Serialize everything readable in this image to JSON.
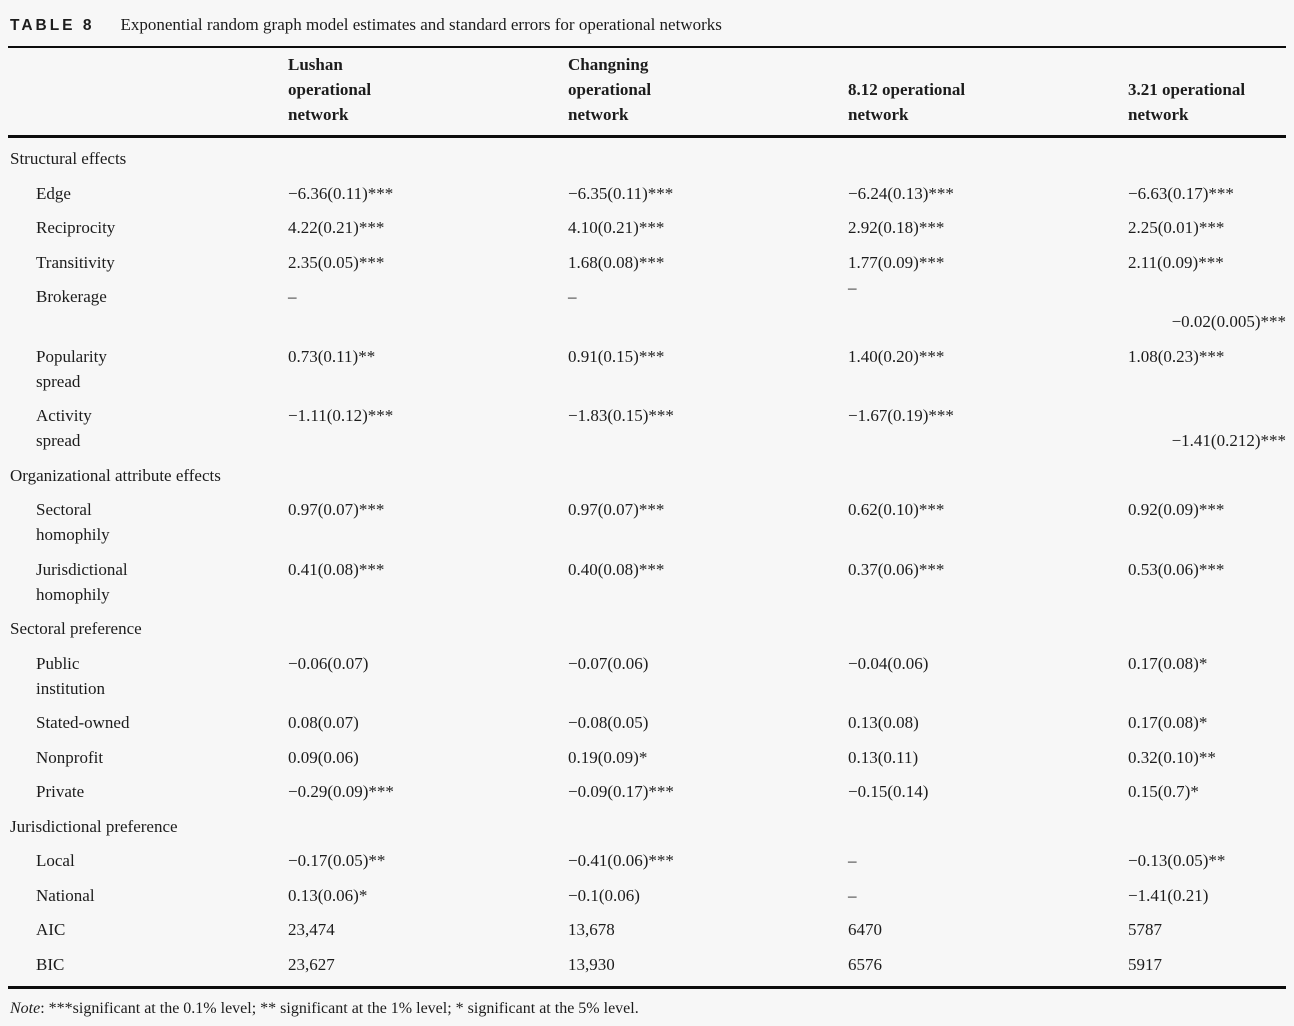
{
  "title": {
    "label": "TABLE 8",
    "caption": "Exponential random graph model estimates and standard errors for operational networks"
  },
  "header": {
    "col1": "Lushan\noperational\nnetwork",
    "col2": "Changning\noperational\nnetwork",
    "col3": "8.12 operational\nnetwork",
    "col4": "3.21 operational\nnetwork"
  },
  "rows": [
    {
      "label": "Structural effects"
    },
    {
      "label": "Edge",
      "v1": "−6.36(0.11)***",
      "v2": "−6.35(0.11)***",
      "v3": "−6.24(0.13)***",
      "v4": "−6.63(0.17)***"
    },
    {
      "label": "Reciprocity",
      "v1": "4.22(0.21)***",
      "v2": "4.10(0.21)***",
      "v3": "2.92(0.18)***",
      "v4": "2.25(0.01)***"
    },
    {
      "label": "Transitivity",
      "v1": "2.35(0.05)***",
      "v2": "1.68(0.08)***",
      "v3": "1.77(0.09)***",
      "v4": "2.11(0.09)***"
    },
    {
      "label": "Brokerage",
      "v1": "–",
      "v2": "–",
      "v3": "–",
      "v4": "−0.02(0.005)***"
    },
    {
      "label": "Popularity\nspread",
      "v1": "0.73(0.11)**",
      "v2": "0.91(0.15)***",
      "v3": "1.40(0.20)***",
      "v4": "1.08(0.23)***"
    },
    {
      "label": "Activity\nspread",
      "v1": "−1.11(0.12)***",
      "v2": "−1.83(0.15)***",
      "v3": "−1.67(0.19)***",
      "v4": "−1.41(0.212)***"
    },
    {
      "label": "Organizational attribute effects"
    },
    {
      "label": "Sectoral\nhomophily",
      "v1": "0.97(0.07)***",
      "v2": "0.97(0.07)***",
      "v3": "0.62(0.10)***",
      "v4": "0.92(0.09)***"
    },
    {
      "label": "Jurisdictional\nhomophily",
      "v1": "0.41(0.08)***",
      "v2": "0.40(0.08)***",
      "v3": "0.37(0.06)***",
      "v4": "0.53(0.06)***"
    },
    {
      "label": "Sectoral preference"
    },
    {
      "label": "Public\ninstitution",
      "v1": "−0.06(0.07)",
      "v2": "−0.07(0.06)",
      "v3": "−0.04(0.06)",
      "v4": "0.17(0.08)*"
    },
    {
      "label": "Stated-owned",
      "v1": "0.08(0.07)",
      "v2": "−0.08(0.05)",
      "v3": "0.13(0.08)",
      "v4": "0.17(0.08)*"
    },
    {
      "label": "Nonprofit",
      "v1": "0.09(0.06)",
      "v2": "0.19(0.09)*",
      "v3": "0.13(0.11)",
      "v4": "0.32(0.10)**"
    },
    {
      "label": "Private",
      "v1": "−0.29(0.09)***",
      "v2": "−0.09(0.17)***",
      "v3": "−0.15(0.14)",
      "v4": "0.15(0.7)*"
    },
    {
      "label": "Jurisdictional preference"
    },
    {
      "label": "Local",
      "v1": "−0.17(0.05)**",
      "v2": "−0.41(0.06)***",
      "v3": "–",
      "v4": "−0.13(0.05)**"
    },
    {
      "label": "National",
      "v1": "0.13(0.06)*",
      "v2": "−0.1(0.06)",
      "v3": "–",
      "v4": "−1.41(0.21)"
    },
    {
      "label": "AIC",
      "v1": "23,474",
      "v2": "13,678",
      "v3": "6470",
      "v4": "5787"
    },
    {
      "label": "BIC",
      "v1": "23,627",
      "v2": "13,930",
      "v3": "6576",
      "v4": "5917"
    }
  ],
  "note": {
    "prefix": "Note",
    "text": ": ***significant at the 0.1% level; ** significant at the 1% level; * significant at the 5% level."
  },
  "colors": {
    "background": "#f7f7f7",
    "text": "#1c1c1c",
    "rule": "#0d0d0d"
  }
}
